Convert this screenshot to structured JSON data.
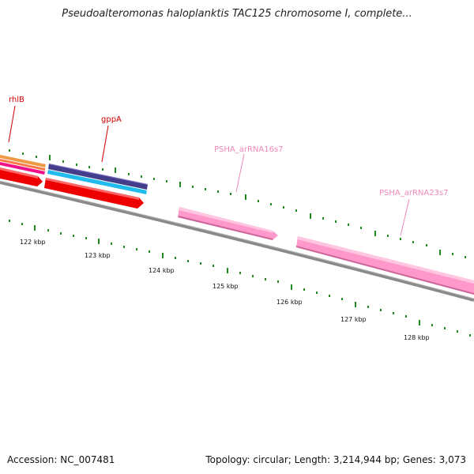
{
  "title": "Pseudoalteromonas haloplanktis TAC125 chromosome I, complete...",
  "footer": {
    "accession": "Accession: NC_007481",
    "topology": "Topology: circular; Length: 3,214,944 bp; Genes: 3,073"
  },
  "scale_labels": [
    "122 kbp",
    "123 kbp",
    "124 kbp",
    "125 kbp",
    "126 kbp",
    "127 kbp",
    "128 kbp"
  ],
  "features": [
    {
      "label": "rhlB",
      "color": "#cc0000",
      "kind": "gene"
    },
    {
      "label": "gppA",
      "color": "#cc0000",
      "kind": "gene"
    },
    {
      "label": "PSHA_arRNA16s7",
      "color": "#ee88bb",
      "kind": "rRNA"
    },
    {
      "label": "PSHA_arRNA23s7",
      "color": "#ee88bb",
      "kind": "rRNA"
    }
  ],
  "colors": {
    "tick": "#228822",
    "backbone": "#777777",
    "cds": "#ee0000",
    "rrna": "#ff99cc",
    "track_navy": "#443d8a",
    "track_cyan": "#22bbee",
    "track_orange": "#ff9933",
    "track_magenta": "#ee1188"
  }
}
